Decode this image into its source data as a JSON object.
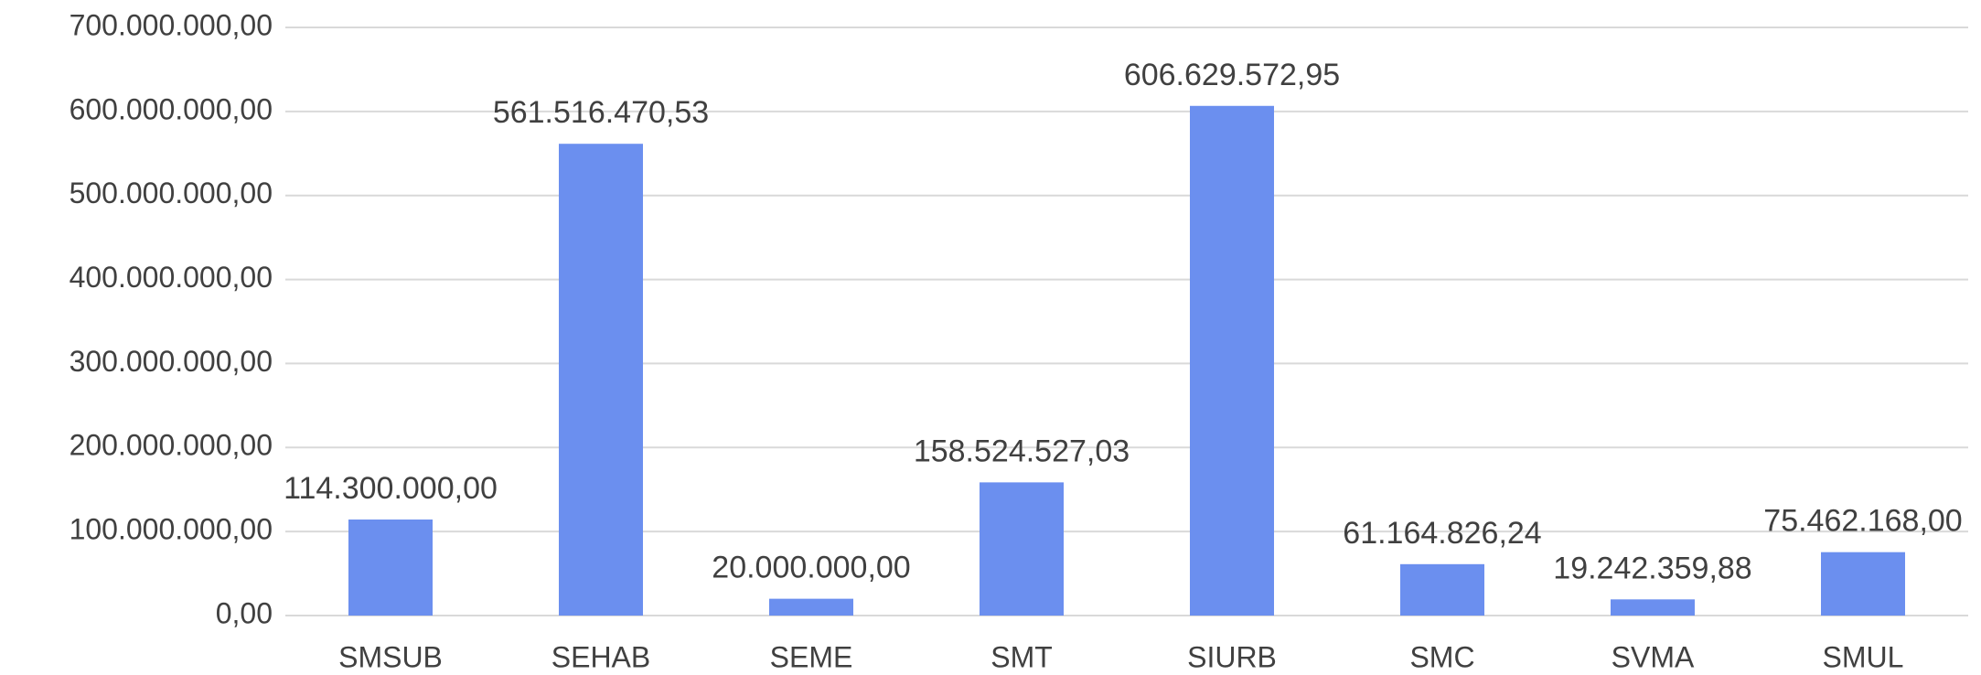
{
  "chart_data": {
    "type": "bar",
    "categories": [
      "SMSUB",
      "SEHAB",
      "SEME",
      "SMT",
      "SIURB",
      "SMC",
      "SVMA",
      "SMUL"
    ],
    "values": [
      114300000.0,
      561516470.53,
      20000000.0,
      158524527.03,
      606629572.95,
      61164826.24,
      19242359.88,
      75462168.0
    ],
    "value_labels": [
      "114.300.000,00",
      "561.516.470,53",
      "20.000.000,00",
      "158.524.527,03",
      "606.629.572,95",
      "61.164.826,24",
      "19.242.359,88",
      "75.462.168,00"
    ],
    "color": "#6b8fef",
    "ylim": [
      0,
      700000000
    ],
    "yticks": [
      {
        "value": 0,
        "label": "0,00"
      },
      {
        "value": 100000000,
        "label": "100.000.000,00"
      },
      {
        "value": 200000000,
        "label": "200.000.000,00"
      },
      {
        "value": 300000000,
        "label": "300.000.000,00"
      },
      {
        "value": 400000000,
        "label": "400.000.000,00"
      },
      {
        "value": 500000000,
        "label": "500.000.000,00"
      },
      {
        "value": 600000000,
        "label": "600.000.000,00"
      },
      {
        "value": 700000000,
        "label": "700.000.000,00"
      }
    ],
    "grid": true
  }
}
